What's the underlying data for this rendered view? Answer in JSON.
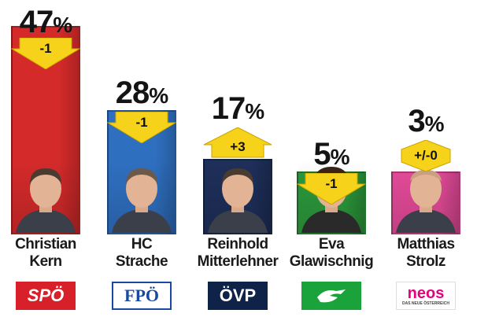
{
  "chart_data": {
    "type": "bar",
    "categories": [
      "Christian Kern",
      "HC Strache",
      "Reinhold Mitterlehner",
      "Eva Glawischnig",
      "Matthias Strolz"
    ],
    "values": [
      47,
      28,
      17,
      5,
      3
    ],
    "value_labels": [
      "47",
      "28",
      "17",
      "5",
      "3"
    ],
    "unit": "%",
    "change_labels": [
      "-1",
      "-1",
      "+3",
      "-1",
      "+/-0"
    ],
    "change_direction": [
      "down",
      "down",
      "up",
      "down",
      "neutral"
    ],
    "names": [
      [
        "Christian",
        "Kern"
      ],
      [
        "HC",
        "Strache"
      ],
      [
        "Reinhold",
        "Mitterlehner"
      ],
      [
        "Eva",
        "Glawischnig"
      ],
      [
        "Matthias",
        "Strolz"
      ]
    ],
    "parties": [
      "SPÖ",
      "FPÖ",
      "ÖVP",
      "Grüne",
      "NEOS"
    ],
    "logo_text": [
      "SPÖ",
      "FPÖ",
      "ÖVP",
      "",
      "neos"
    ],
    "logo_subtext": [
      "",
      "",
      "",
      "",
      "DAS NEUE ÖSTERREICH"
    ],
    "ylim": [
      0,
      50
    ],
    "title": "",
    "xlabel": "",
    "ylabel": ""
  },
  "colors": {
    "bars": [
      "#d42a2a",
      "#2f6fc0",
      "#1e2f5a",
      "#2c9a3c",
      "#e64b9a"
    ],
    "arrow_fill": "#f7d21b",
    "logo_bg": [
      "#d8202a",
      "#ffffff",
      "#0f2348",
      "#1aa33b",
      "#ffffff"
    ],
    "logo_fg": [
      "#ffffff",
      "#1a4aa0",
      "#ffffff",
      "#ffffff",
      "#e6007e"
    ]
  }
}
